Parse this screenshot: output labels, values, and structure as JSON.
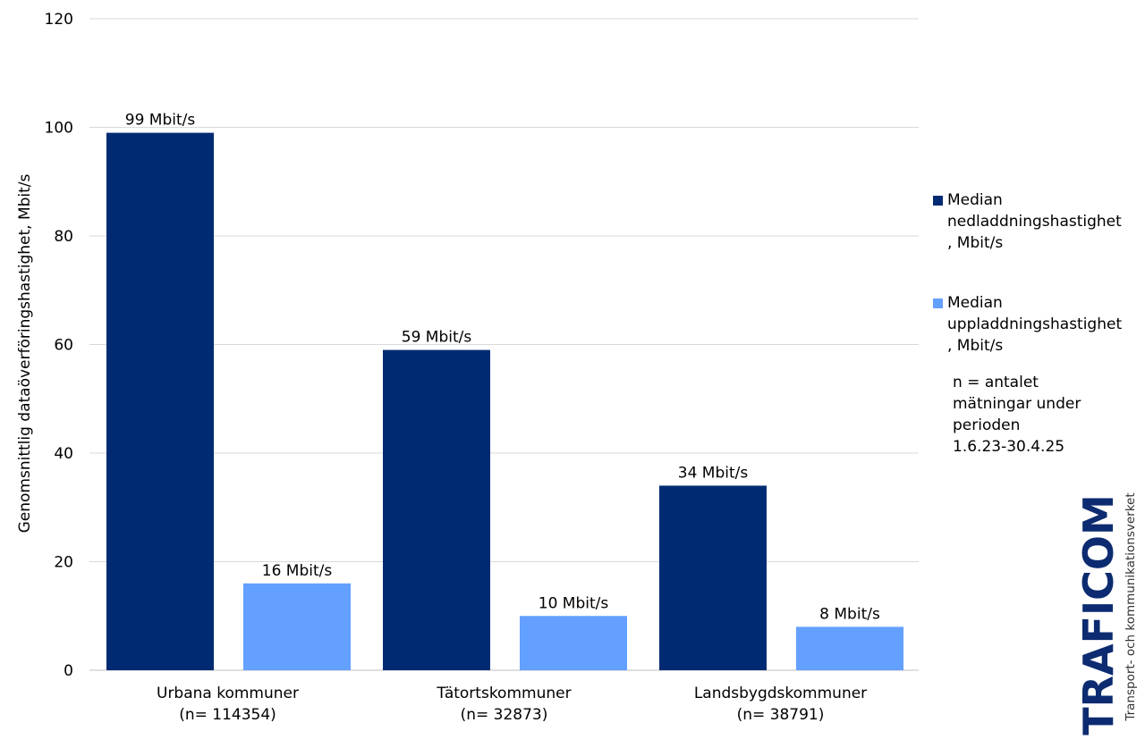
{
  "chart_data": {
    "type": "bar",
    "title": "",
    "xlabel": "",
    "ylabel": "Genomsnittlig dataöverföringshastighet, Mbit/s",
    "ylim": [
      0,
      120
    ],
    "yticks": [
      "0",
      "20",
      "40",
      "60",
      "80",
      "100",
      "120"
    ],
    "grid": true,
    "legend_position": "right",
    "categories": [
      {
        "line1": "Urbana kommuner",
        "line2": "(n= 114354)"
      },
      {
        "line1": "Tätortskommuner",
        "line2": "(n= 32873)"
      },
      {
        "line1": "Landsbygdskommuner",
        "line2": "(n= 38791)"
      }
    ],
    "series": [
      {
        "name": "Median nedladdningshastighet, Mbit/s",
        "legend_line1": "Median",
        "legend_line2": "nedladdningshastighet",
        "legend_line3": ", Mbit/s",
        "color": "#002b73",
        "values": [
          99,
          59,
          34
        ],
        "labels": [
          "99 Mbit/s",
          "59 Mbit/s",
          "34 Mbit/s"
        ]
      },
      {
        "name": "Median uppladdningshastighet, Mbit/s",
        "legend_line1": "Median",
        "legend_line2": "uppladdningshastighet",
        "legend_line3": ", Mbit/s",
        "color": "#63a0ff",
        "values": [
          16,
          10,
          8
        ],
        "labels": [
          "16 Mbit/s",
          "10 Mbit/s",
          "8 Mbit/s"
        ]
      }
    ],
    "note": {
      "line1": "n = antalet",
      "line2": "mätningar under",
      "line3": "perioden",
      "line4": "1.6.23-30.4.25"
    }
  },
  "logo": {
    "name": "TRAFICOM",
    "subtitle": "Transport- och kommunikationsverket",
    "color": "#0c2b70"
  }
}
